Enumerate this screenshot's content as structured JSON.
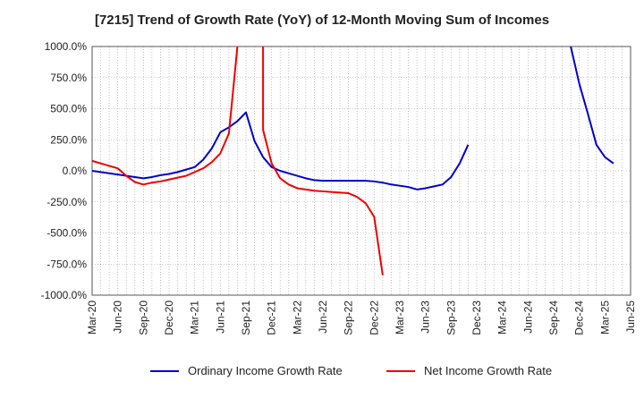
{
  "chart_data": {
    "type": "line",
    "title": "[7215]  Trend of Growth Rate (YoY) of 12-Month Moving Sum of Incomes",
    "xlabel": "",
    "ylabel": "",
    "ylim": [
      -1000,
      1000
    ],
    "y_ticks": [
      1000,
      750,
      500,
      250,
      0,
      -250,
      -500,
      -750,
      -1000
    ],
    "y_tick_labels": [
      "1000.0%",
      "750.0%",
      "500.0%",
      "250.0%",
      "0.0%",
      "-250.0%",
      "-500.0%",
      "-750.0%",
      "-1000.0%"
    ],
    "x_tick_labels": [
      "Mar-20",
      "Jun-20",
      "Sep-20",
      "Dec-20",
      "Mar-21",
      "Jun-21",
      "Sep-21",
      "Dec-21",
      "Mar-22",
      "Jun-22",
      "Sep-22",
      "Dec-22",
      "Mar-23",
      "Jun-23",
      "Sep-23",
      "Dec-23",
      "Mar-24",
      "Jun-24",
      "Sep-24",
      "Dec-24",
      "Mar-25",
      "Jun-25"
    ],
    "grid": true,
    "legend_position": "bottom",
    "series": [
      {
        "name": "Ordinary Income Growth Rate",
        "color": "#0000cc",
        "points": [
          [
            "Mar-20",
            0
          ],
          [
            "Apr-20",
            -10
          ],
          [
            "May-20",
            -20
          ],
          [
            "Jun-20",
            -30
          ],
          [
            "Jul-20",
            -40
          ],
          [
            "Aug-20",
            -50
          ],
          [
            "Sep-20",
            -60
          ],
          [
            "Oct-20",
            -50
          ],
          [
            "Nov-20",
            -35
          ],
          [
            "Dec-20",
            -25
          ],
          [
            "Jan-21",
            -10
          ],
          [
            "Feb-21",
            10
          ],
          [
            "Mar-21",
            30
          ],
          [
            "Apr-21",
            90
          ],
          [
            "May-21",
            180
          ],
          [
            "Jun-21",
            310
          ],
          [
            "Jul-21",
            350
          ],
          [
            "Aug-21",
            400
          ],
          [
            "Sep-21",
            470
          ],
          [
            "Oct-21",
            240
          ],
          [
            "Nov-21",
            110
          ],
          [
            "Dec-21",
            30
          ],
          [
            "Jan-22",
            0
          ],
          [
            "Feb-22",
            -20
          ],
          [
            "Mar-22",
            -40
          ],
          [
            "Apr-22",
            -60
          ],
          [
            "May-22",
            -75
          ],
          [
            "Jun-22",
            -80
          ],
          [
            "Jul-22",
            -80
          ],
          [
            "Aug-22",
            -80
          ],
          [
            "Sep-22",
            -80
          ],
          [
            "Oct-22",
            -80
          ],
          [
            "Nov-22",
            -80
          ],
          [
            "Dec-22",
            -85
          ],
          [
            "Jan-23",
            -95
          ],
          [
            "Feb-23",
            -110
          ],
          [
            "Mar-23",
            -120
          ],
          [
            "Apr-23",
            -130
          ],
          [
            "May-23",
            -150
          ],
          [
            "Jun-23",
            -140
          ],
          [
            "Jul-23",
            -125
          ],
          [
            "Aug-23",
            -110
          ],
          [
            "Sep-23",
            -50
          ],
          [
            "Oct-23",
            60
          ],
          [
            "Nov-23",
            210
          ]
        ],
        "points_2": [
          [
            "Nov-24",
            1000
          ],
          [
            "Dec-24",
            700
          ],
          [
            "Jan-25",
            460
          ],
          [
            "Feb-25",
            210
          ],
          [
            "Mar-25",
            110
          ],
          [
            "Apr-25",
            60
          ]
        ]
      },
      {
        "name": "Net Income Growth Rate",
        "color": "#ee0000",
        "points": [
          [
            "Mar-20",
            80
          ],
          [
            "Apr-20",
            60
          ],
          [
            "May-20",
            40
          ],
          [
            "Jun-20",
            20
          ],
          [
            "Jul-20",
            -40
          ],
          [
            "Aug-20",
            -90
          ],
          [
            "Sep-20",
            -110
          ],
          [
            "Oct-20",
            -95
          ],
          [
            "Nov-20",
            -85
          ],
          [
            "Dec-20",
            -70
          ],
          [
            "Jan-21",
            -55
          ],
          [
            "Feb-21",
            -40
          ],
          [
            "Mar-21",
            -10
          ],
          [
            "Apr-21",
            20
          ],
          [
            "May-21",
            70
          ],
          [
            "Jun-21",
            140
          ],
          [
            "Jul-21",
            300
          ],
          [
            "Aug-21",
            1000
          ]
        ],
        "points_2": [
          [
            "Nov-21",
            1000
          ],
          [
            "Nov-21",
            330
          ],
          [
            "Dec-21",
            60
          ],
          [
            "Jan-22",
            -60
          ],
          [
            "Feb-22",
            -110
          ],
          [
            "Mar-22",
            -140
          ],
          [
            "Apr-22",
            -150
          ],
          [
            "May-22",
            -160
          ],
          [
            "Jun-22",
            -165
          ],
          [
            "Jul-22",
            -170
          ],
          [
            "Aug-22",
            -175
          ],
          [
            "Sep-22",
            -180
          ],
          [
            "Oct-22",
            -210
          ],
          [
            "Nov-22",
            -260
          ],
          [
            "Dec-22",
            -370
          ],
          [
            "Jan-23",
            -840
          ]
        ]
      }
    ]
  }
}
